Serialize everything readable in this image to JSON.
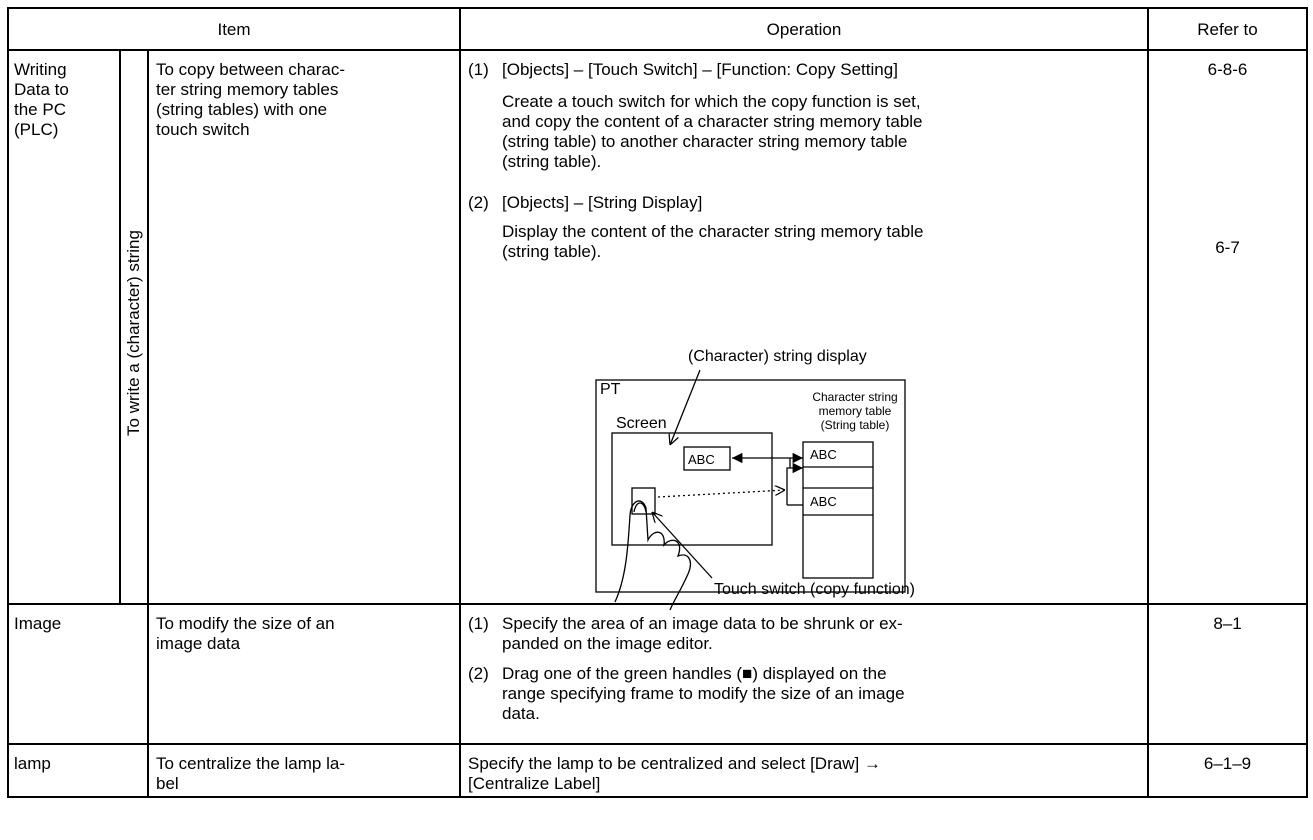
{
  "header": {
    "item": "Item",
    "operation": "Operation",
    "refer_to": "Refer to"
  },
  "rows": [
    {
      "category": [
        "Writing",
        "Data to",
        "the PC",
        "(PLC)"
      ],
      "subcategory": "To write a (character) string",
      "item": [
        "To copy between charac-",
        "ter string memory tables",
        "(string tables) with one",
        "touch switch"
      ],
      "operations": [
        {
          "number": "(1)",
          "heading": "[Objects] – [Touch Switch] – [Function: Copy Setting]",
          "lines": [
            "Create a touch switch for which the copy function is set,",
            "and copy the content of a character string memory table",
            "(string table) to another character string memory table",
            "(string table)."
          ]
        },
        {
          "number": "(2)",
          "heading": "[Objects] – [String Display]",
          "lines": [
            "Display the content of the character string memory table",
            "(string table)."
          ]
        }
      ],
      "refer_to": [
        "6-8-6",
        "6-7"
      ],
      "diagram": {
        "display_label": "(Character) string display",
        "pt_label": "PT",
        "screen_label": "Screen",
        "table_label": [
          "Character string",
          "memory table",
          "(String table)"
        ],
        "screen_value": "ABC",
        "table_values": [
          "ABC",
          "ABC"
        ],
        "switch_label": "Touch switch (copy function)"
      }
    },
    {
      "category": [
        "Image"
      ],
      "item": [
        "To modify the size of an",
        "image data"
      ],
      "operations": [
        {
          "number": "(1)",
          "lines": [
            "Specify the area of an image data to be shrunk or ex-",
            "panded on the image editor."
          ]
        },
        {
          "number": "(2)",
          "lines": [
            "Drag one of the green handles (■) displayed on the",
            "range specifying frame to modify the size of an image",
            "data."
          ]
        }
      ],
      "refer_to": [
        "8–1"
      ]
    },
    {
      "category": [
        "lamp"
      ],
      "item": [
        "To centralize the lamp la-",
        "bel"
      ],
      "operation": [
        "Specify the lamp to be centralized and select [Draw] →",
        "[Centralize Label]"
      ],
      "refer_to": [
        "6–1–9"
      ]
    }
  ]
}
